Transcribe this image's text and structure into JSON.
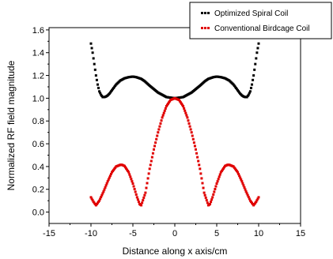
{
  "chart_data": {
    "type": "scatter",
    "title": "",
    "xlabel": "Distance along x axis/cm",
    "ylabel": "Normalized RF field magnitude",
    "xlim": [
      -15,
      15
    ],
    "ylim": [
      -0.1,
      1.62
    ],
    "x_ticks": [
      -15,
      -10,
      -5,
      0,
      5,
      10,
      15
    ],
    "y_ticks": [
      0.0,
      0.2,
      0.4,
      0.6,
      0.8,
      1.0,
      1.2,
      1.4,
      1.6
    ],
    "grid": false,
    "legend_position": "top-right",
    "series": [
      {
        "name": "Optimized Spiral Coil",
        "color": "#000000",
        "x": [
          -10,
          -9.8,
          -9.6,
          -9.4,
          -9.2,
          -9.0,
          -8.8,
          -8.6,
          -8.4,
          -8.2,
          -8.0,
          -7.8,
          -7.6,
          -7.4,
          -7.2,
          -7.0,
          -6.5,
          -6.0,
          -5.5,
          -5.0,
          -4.6,
          -4.2,
          -4.0,
          -3.6,
          -3.0,
          -2.5,
          -2.0,
          -1.5,
          -1.0,
          -0.5,
          0,
          0.5,
          1.0,
          1.5,
          2.0,
          2.5,
          3.0,
          3.6,
          4.0,
          4.2,
          4.6,
          5.0,
          5.5,
          6.0,
          6.5,
          7.0,
          7.2,
          7.4,
          7.6,
          7.8,
          8.0,
          8.2,
          8.4,
          8.6,
          8.8,
          9.0,
          9.2,
          9.4,
          9.6,
          9.8,
          10
        ],
        "y": [
          1.48,
          1.4,
          1.3,
          1.2,
          1.12,
          1.06,
          1.03,
          1.01,
          1.01,
          1.015,
          1.025,
          1.04,
          1.06,
          1.08,
          1.1,
          1.12,
          1.155,
          1.175,
          1.185,
          1.19,
          1.185,
          1.175,
          1.17,
          1.15,
          1.11,
          1.08,
          1.05,
          1.03,
          1.01,
          1.005,
          1.0,
          1.005,
          1.01,
          1.03,
          1.05,
          1.08,
          1.11,
          1.15,
          1.17,
          1.175,
          1.185,
          1.19,
          1.185,
          1.175,
          1.155,
          1.12,
          1.1,
          1.08,
          1.06,
          1.04,
          1.025,
          1.015,
          1.01,
          1.01,
          1.03,
          1.06,
          1.12,
          1.2,
          1.3,
          1.4,
          1.48
        ]
      },
      {
        "name": "Conventional Birdcage Coil",
        "color": "#e00000",
        "x": [
          -10,
          -9.7,
          -9.4,
          -9.0,
          -8.5,
          -8.0,
          -7.5,
          -7.0,
          -6.5,
          -6.3,
          -6.0,
          -5.5,
          -5.0,
          -4.5,
          -4.2,
          -4.0,
          -3.5,
          -3.0,
          -2.5,
          -2.0,
          -1.5,
          -1.0,
          -0.5,
          0,
          0.5,
          1.0,
          1.5,
          2.0,
          2.5,
          3.0,
          3.5,
          4.0,
          4.2,
          4.5,
          5.0,
          5.5,
          6.0,
          6.3,
          6.5,
          7.0,
          7.5,
          8.0,
          8.5,
          9.0,
          9.4,
          9.7,
          10
        ],
        "y": [
          0.13,
          0.09,
          0.06,
          0.1,
          0.18,
          0.27,
          0.35,
          0.4,
          0.415,
          0.415,
          0.405,
          0.35,
          0.25,
          0.13,
          0.07,
          0.06,
          0.17,
          0.38,
          0.55,
          0.7,
          0.83,
          0.93,
          0.985,
          1.0,
          0.985,
          0.93,
          0.83,
          0.7,
          0.55,
          0.38,
          0.17,
          0.06,
          0.07,
          0.13,
          0.25,
          0.35,
          0.405,
          0.415,
          0.415,
          0.4,
          0.35,
          0.27,
          0.18,
          0.1,
          0.06,
          0.09,
          0.13
        ]
      }
    ]
  }
}
